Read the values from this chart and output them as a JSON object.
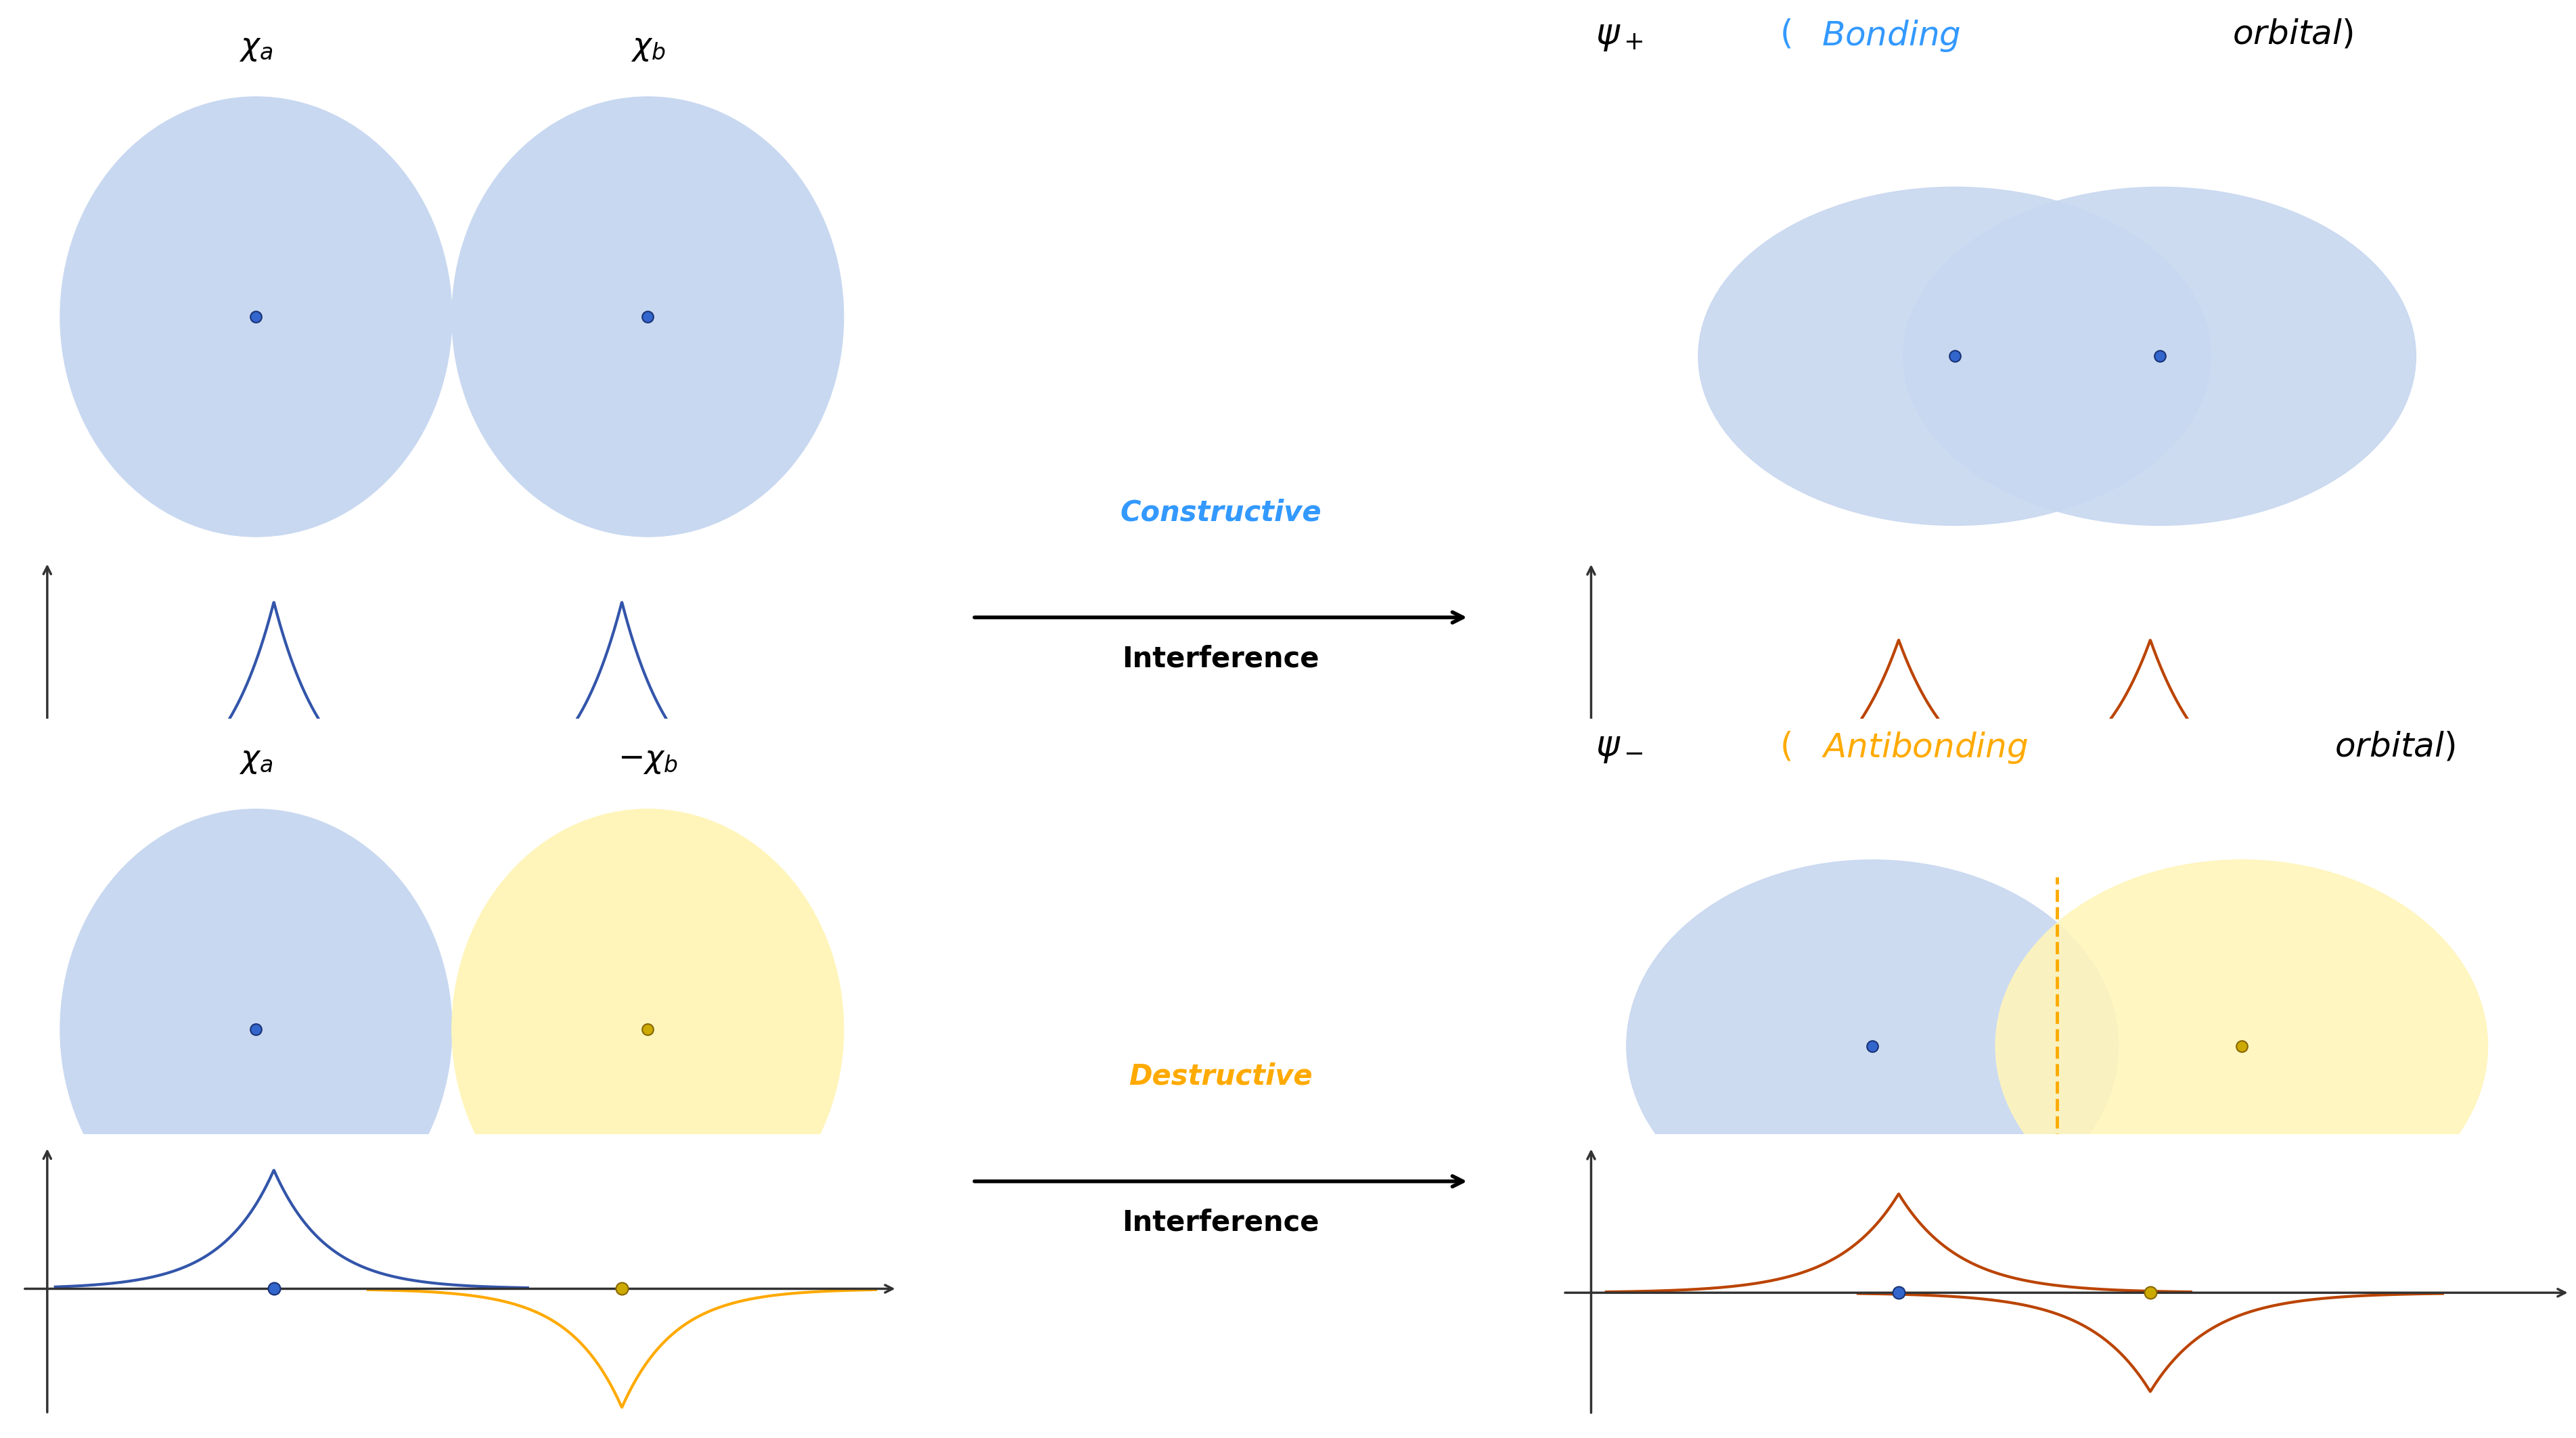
{
  "blue_orbital_color": "#c8d8f0",
  "yellow_orbital_color": "#fff5bb",
  "blue_nucleus_color": "#3366cc",
  "yellow_nucleus_color": "#ccaa00",
  "curve_blue_color": "#3355aa",
  "curve_orange_color": "#bb4400",
  "axis_color": "#333333",
  "constructive_color": "#3399ff",
  "destructive_color": "#ffaa00",
  "background_color": "#ffffff"
}
